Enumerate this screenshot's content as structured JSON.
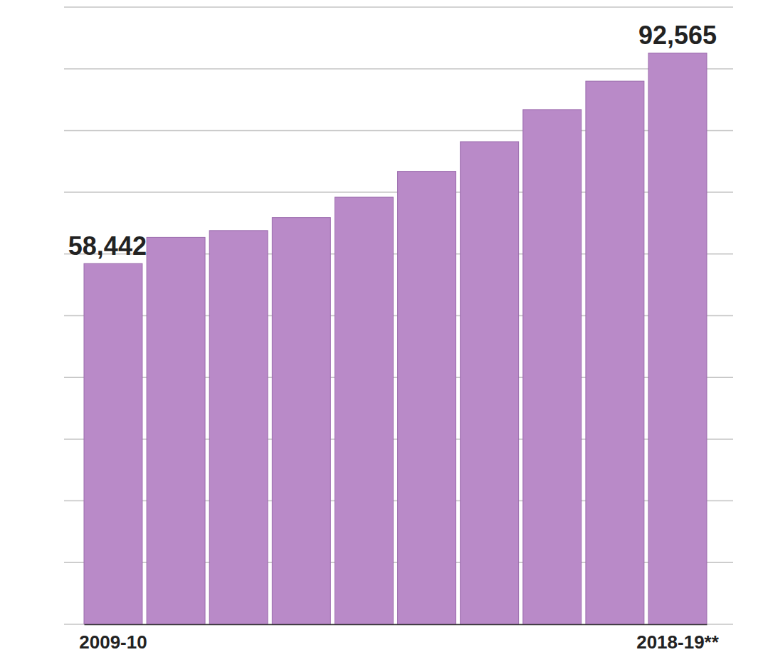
{
  "chart_data": {
    "type": "bar",
    "categories": [
      "2009-10",
      null,
      null,
      null,
      null,
      null,
      null,
      null,
      null,
      "2018-19**"
    ],
    "values": [
      58442,
      62700,
      63800,
      65900,
      69200,
      73400,
      78200,
      83400,
      88000,
      92565
    ],
    "value_labels": [
      "58,442",
      null,
      null,
      null,
      null,
      null,
      null,
      null,
      null,
      "92,565"
    ],
    "data_labels": true,
    "color": "#b98ac8",
    "ylim": [
      0,
      100000
    ],
    "yticks": [
      0,
      10000,
      20000,
      30000,
      40000,
      50000,
      60000,
      70000,
      80000,
      90000,
      100000
    ],
    "grid": true,
    "tick_labels": "x"
  }
}
